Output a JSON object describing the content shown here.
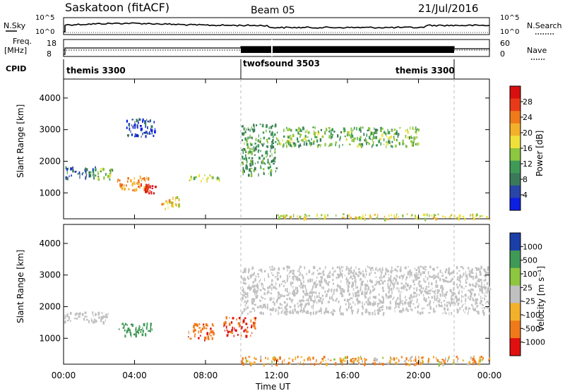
{
  "header": {
    "site": "Saskatoon (fitACF)",
    "beam": "Beam 05",
    "date": "21/Jul/2016"
  },
  "left_labels": {
    "nsky": "N.Sky",
    "freq": "Freq.",
    "freq_unit": "[MHz]",
    "cpid": "CPID"
  },
  "right_labels": {
    "nsearch": "N.Search",
    "nave": "Nave"
  },
  "nsky_axis": {
    "top": "10^5",
    "bottom": "10^0"
  },
  "nsearch_axis": {
    "top": "10^5",
    "bottom": "10^0"
  },
  "freq_axis": {
    "top": "18",
    "bottom": "8"
  },
  "nave_axis": {
    "top": "60",
    "bottom": "0"
  },
  "cpid_segments": [
    "themis 3300",
    "twofsound 3503",
    "themis 3300"
  ],
  "x_axis": {
    "label": "Time UT",
    "ticks": [
      "00:00",
      "04:00",
      "08:00",
      "12:00",
      "16:00",
      "20:00",
      "00:00"
    ]
  },
  "colors": {
    "power": [
      "#0d1fe0",
      "#2a45a8",
      "#3a7a5a",
      "#3f9a57",
      "#8dc63f",
      "#f0e13a",
      "#f3b12b",
      "#f07a1a",
      "#e83a18",
      "#d80f10"
    ],
    "velocity": [
      "#e01010",
      "#f07a1a",
      "#f3b12b",
      "#c0c0c0",
      "#8dc63f",
      "#3f9a57",
      "#1a3fa8"
    ],
    "ground": "#c0c0c0"
  },
  "chart_data": [
    {
      "type": "heatmap",
      "title": "Power",
      "ylabel": "Slant Range [km]",
      "xlabel": "",
      "x_range_hours": [
        0,
        24
      ],
      "ylim": [
        180,
        4600
      ],
      "y_ticks": [
        1000,
        2000,
        3000,
        4000
      ],
      "colorbar": {
        "label": "Power [dB]",
        "ticks": [
          4,
          8,
          12,
          16,
          20,
          24,
          28
        ],
        "range": [
          0,
          30
        ]
      },
      "features": [
        {
          "t": [
            0.0,
            1.8
          ],
          "range_km": [
            1500,
            1850
          ],
          "value": 6
        },
        {
          "t": [
            1.5,
            2.8
          ],
          "range_km": [
            1450,
            1800
          ],
          "value": 12
        },
        {
          "t": [
            3.0,
            4.8
          ],
          "range_km": [
            1100,
            1550
          ],
          "value": 22
        },
        {
          "t": [
            4.5,
            5.2
          ],
          "range_km": [
            1000,
            1300
          ],
          "value": 28
        },
        {
          "t": [
            5.5,
            6.5
          ],
          "range_km": [
            500,
            900
          ],
          "value": 18
        },
        {
          "t": [
            7.0,
            8.8
          ],
          "range_km": [
            1400,
            1600
          ],
          "value": 14
        },
        {
          "t": [
            10.0,
            12.0
          ],
          "range_km": [
            1600,
            3200
          ],
          "value": 10
        },
        {
          "t": [
            12.0,
            20.0
          ],
          "range_km": [
            2500,
            3100
          ],
          "value": 12
        },
        {
          "t": [
            12.0,
            24.0
          ],
          "range_km": [
            200,
            350
          ],
          "value": 16
        },
        {
          "t": [
            3.5,
            5.2
          ],
          "range_km": [
            2800,
            3400
          ],
          "value": 4
        }
      ]
    },
    {
      "type": "heatmap",
      "title": "Velocity",
      "ylabel": "Slant Range [km]",
      "xlabel": "Time UT",
      "x_range_hours": [
        0,
        24
      ],
      "ylim": [
        180,
        4600
      ],
      "y_ticks": [
        1000,
        2000,
        3000,
        4000
      ],
      "colorbar": {
        "label": "Velocity [m s⁻¹]",
        "ticks": [
          1000,
          500,
          100,
          25,
          -25,
          -100,
          -500,
          -1000
        ],
        "range": [
          -1000,
          1000
        ]
      },
      "features": [
        {
          "t": [
            0.0,
            2.5
          ],
          "range_km": [
            1500,
            1850
          ],
          "value": 0
        },
        {
          "t": [
            3.0,
            5.0
          ],
          "range_km": [
            1100,
            1500
          ],
          "value": 300
        },
        {
          "t": [
            7.0,
            8.5
          ],
          "range_km": [
            1000,
            1500
          ],
          "value": -400
        },
        {
          "t": [
            9.0,
            10.8
          ],
          "range_km": [
            1100,
            1700
          ],
          "value": -500
        },
        {
          "t": [
            10.0,
            24.0
          ],
          "range_km": [
            1800,
            3300
          ],
          "value": 0
        },
        {
          "t": [
            10.0,
            24.0
          ],
          "range_km": [
            200,
            450
          ],
          "value": -100
        }
      ]
    }
  ]
}
